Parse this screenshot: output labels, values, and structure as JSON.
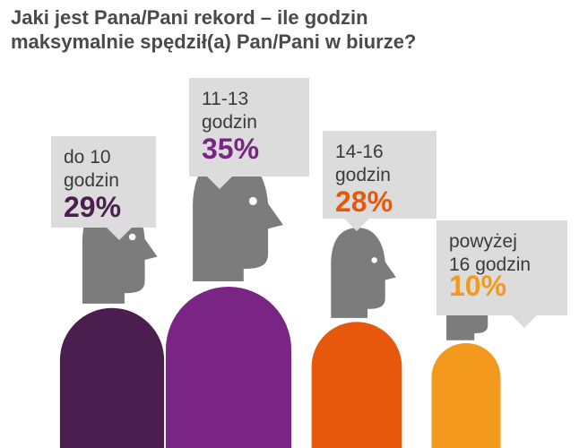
{
  "title": {
    "line1": "Jaki jest Pana/Pani rekord – ile godzin",
    "line2": "maksymalnie spędził(a) Pan/Pani w biurze?"
  },
  "chart_data": {
    "type": "pictogram",
    "title": "Jaki jest Pana/Pani rekord – ile godzin maksymalnie spędził(a) Pan/Pani w biurze?",
    "unit": "%",
    "categories": [
      {
        "label_lines": [
          "do 10",
          "godzin"
        ],
        "value": 29,
        "value_label": "29%",
        "color": "#4a1e4e"
      },
      {
        "label_lines": [
          "11-13",
          "godzin"
        ],
        "value": 35,
        "value_label": "35%",
        "color": "#7a2585"
      },
      {
        "label_lines": [
          "14-16",
          "godzin"
        ],
        "value": 28,
        "value_label": "28%",
        "color": "#e8580c"
      },
      {
        "label_lines": [
          "powyżej",
          "16 godzin"
        ],
        "value": 10,
        "value_label": "10%",
        "color": "#f39a1e"
      }
    ],
    "head_color": "#7c7c7c",
    "bubble_color": "#dcdcdc"
  }
}
